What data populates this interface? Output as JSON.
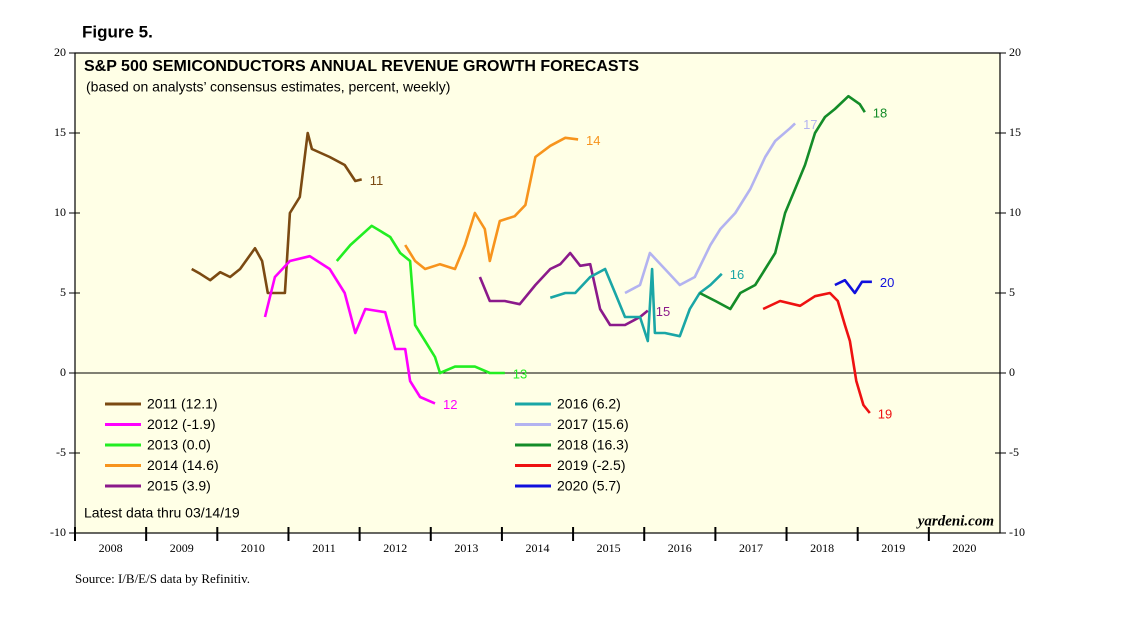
{
  "chart_data": {
    "type": "line",
    "figure_label": "Figure 5.",
    "title": "S&P 500 SEMICONDUCTORS ANNUAL REVENUE GROWTH FORECASTS",
    "subtitle": "(based on analysts’ consensus estimates, percent, weekly)",
    "note": "Latest data thru 03/14/19",
    "brand": "yardeni.com",
    "source": "Source: I/B/E/S data by Refinitiv.",
    "xlim": [
      2008,
      2021
    ],
    "xticks": [
      2008,
      2009,
      2010,
      2011,
      2012,
      2013,
      2014,
      2015,
      2016,
      2017,
      2018,
      2019,
      2020
    ],
    "ylim": [
      -10,
      20
    ],
    "yticks": [
      -10,
      -5,
      0,
      5,
      10,
      15,
      20
    ],
    "series": [
      {
        "name": "2011 (12.1)",
        "label": "11",
        "color": "#7b4a12",
        "x": [
          2009.64,
          2009.76,
          2009.9,
          2010.04,
          2010.18,
          2010.32,
          2010.53,
          2010.63,
          2010.71,
          2010.95,
          2011.02,
          2011.16,
          2011.27,
          2011.33,
          2011.58,
          2011.79,
          2011.94,
          2012.03
        ],
        "values": [
          6.5,
          6.2,
          5.8,
          6.3,
          6.0,
          6.5,
          7.8,
          7,
          5,
          5,
          10,
          11,
          15,
          14,
          13.5,
          13,
          12,
          12.1
        ]
      },
      {
        "name": "2012 (-1.9)",
        "label": "12",
        "color": "#ff00ff",
        "x": [
          2010.67,
          2010.81,
          2011.02,
          2011.3,
          2011.58,
          2011.79,
          2011.94,
          2012.08,
          2012.36,
          2012.5,
          2012.64,
          2012.71,
          2012.85,
          2013.06
        ],
        "values": [
          3.5,
          6,
          7,
          7.3,
          6.5,
          5,
          2.5,
          4,
          3.8,
          1.5,
          1.5,
          -0.5,
          -1.5,
          -1.9
        ]
      },
      {
        "name": "2013 (0.0)",
        "label": "13",
        "color": "#22ee22",
        "x": [
          2011.68,
          2011.87,
          2012.17,
          2012.43,
          2012.57,
          2012.71,
          2012.78,
          2012.92,
          2013.06,
          2013.13,
          2013.34,
          2013.62,
          2013.83,
          2014.04
        ],
        "values": [
          7,
          8,
          9.2,
          8.5,
          7.5,
          7,
          3,
          2,
          1,
          0,
          0.4,
          0.4,
          0,
          0.0
        ]
      },
      {
        "name": "2014 (14.6)",
        "label": "14",
        "color": "#f7941d",
        "x": [
          2012.64,
          2012.78,
          2012.92,
          2013.13,
          2013.34,
          2013.48,
          2013.62,
          2013.76,
          2013.83,
          2013.97,
          2014.18,
          2014.33,
          2014.47,
          2014.68,
          2014.89,
          2015.07
        ],
        "values": [
          8,
          7,
          6.5,
          6.8,
          6.5,
          8,
          10,
          9,
          7,
          9.5,
          9.8,
          10.5,
          13.5,
          14.2,
          14.7,
          14.6
        ]
      },
      {
        "name": "2015 (3.9)",
        "label": "15",
        "color": "#8b1a8b",
        "x": [
          2013.69,
          2013.83,
          2014.04,
          2014.25,
          2014.47,
          2014.68,
          2014.82,
          2014.96,
          2015.1,
          2015.24,
          2015.38,
          2015.52,
          2015.73,
          2015.94,
          2016.05
        ],
        "values": [
          6,
          4.5,
          4.5,
          4.3,
          5.5,
          6.5,
          6.8,
          7.5,
          6.7,
          6.8,
          4,
          3,
          3,
          3.5,
          3.9
        ]
      },
      {
        "name": "2016 (6.2)",
        "label": "16",
        "color": "#1aa6a6",
        "x": [
          2014.68,
          2014.89,
          2015.03,
          2015.24,
          2015.45,
          2015.59,
          2015.73,
          2015.94,
          2016.05,
          2016.11,
          2016.15,
          2016.29,
          2016.5,
          2016.64,
          2016.78,
          2016.93,
          2017.09
        ],
        "values": [
          4.7,
          5,
          5,
          6,
          6.5,
          5,
          3.5,
          3.5,
          2,
          6.5,
          2.5,
          2.5,
          2.3,
          4,
          5,
          5.5,
          6.2
        ]
      },
      {
        "name": "2017 (15.6)",
        "label": "17",
        "color": "#b3b3f0",
        "x": [
          2015.73,
          2015.94,
          2016.08,
          2016.29,
          2016.5,
          2016.71,
          2016.93,
          2017.07,
          2017.28,
          2017.49,
          2017.7,
          2017.84,
          2018.05,
          2018.12
        ],
        "values": [
          5,
          5.5,
          7.5,
          6.5,
          5.5,
          6,
          8,
          9,
          10,
          11.5,
          13.5,
          14.5,
          15.3,
          15.6
        ]
      },
      {
        "name": "2018 (16.3)",
        "label": "18",
        "color": "#148c28",
        "x": [
          2016.78,
          2017.0,
          2017.21,
          2017.35,
          2017.56,
          2017.7,
          2017.84,
          2017.98,
          2018.12,
          2018.26,
          2018.4,
          2018.54,
          2018.68,
          2018.87,
          2019.03,
          2019.1
        ],
        "values": [
          5,
          4.5,
          4,
          5,
          5.5,
          6.5,
          7.5,
          10,
          11.5,
          13,
          15,
          16,
          16.5,
          17.3,
          16.8,
          16.3
        ]
      },
      {
        "name": "2019 (-2.5)",
        "label": "19",
        "color": "#ee1111",
        "x": [
          2017.67,
          2017.91,
          2018.19,
          2018.4,
          2018.61,
          2018.72,
          2018.82,
          2018.89,
          2018.98,
          2019.08,
          2019.17
        ],
        "values": [
          4,
          4.5,
          4.2,
          4.8,
          5,
          4.5,
          3,
          2,
          -0.5,
          -2,
          -2.5
        ]
      },
      {
        "name": "2020 (5.7)",
        "label": "20",
        "color": "#1010dd",
        "x": [
          2018.68,
          2018.82,
          2018.96,
          2019.06,
          2019.2
        ],
        "values": [
          5.5,
          5.8,
          5,
          5.7,
          5.7
        ]
      }
    ]
  }
}
